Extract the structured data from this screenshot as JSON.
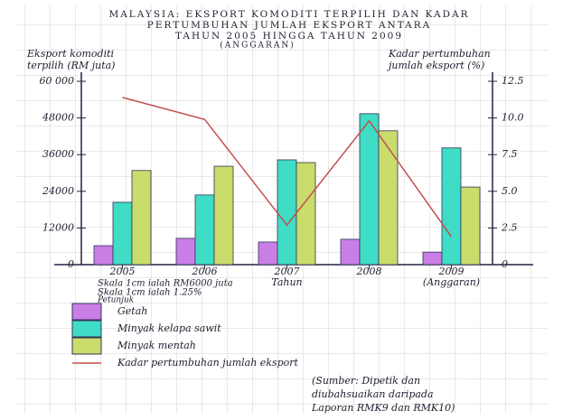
{
  "chart_data": {
    "type": "bar",
    "title": [
      "MALAYSIA: EKSPORT KOMODITI TERPILIH DAN KADAR",
      "PERTUMBUHAN JUMLAH EKSPORT ANTARA",
      "TAHUN 2005 HINGGA TAHUN 2009"
    ],
    "subtitle": "(ANGGARAN)",
    "y_label": [
      "Eksport komoditi",
      "terpilih (RM juta)"
    ],
    "y2_label": [
      "Kadar pertumbuhan",
      "jumlah eksport (%)"
    ],
    "x_label": "Tahun",
    "categories": [
      "2005",
      "2006",
      "2007",
      "2008",
      "2009"
    ],
    "annotation": "(Anggaran)",
    "series": [
      {
        "name": "Getah",
        "type": "bar",
        "color": "#c97ee6",
        "values": [
          6200,
          8600,
          7400,
          8300,
          4100
        ]
      },
      {
        "name": "Minyak kelapa sawit",
        "type": "bar",
        "color": "#3fdcc6",
        "values": [
          20400,
          22800,
          34300,
          49400,
          38200
        ]
      },
      {
        "name": "Minyak mentah",
        "type": "bar",
        "color": "#c9dc6c",
        "values": [
          30800,
          32200,
          33400,
          43800,
          25400
        ]
      },
      {
        "name": "Kadar pertumbuhan jumlah eksport",
        "type": "line",
        "axis": "y2",
        "color": "#c0504d",
        "values": [
          11.4,
          9.9,
          2.7,
          9.8,
          1.9
        ]
      }
    ],
    "ylim": [
      0,
      60000
    ],
    "yticks": [
      0,
      12000,
      24000,
      36000,
      48000,
      {
        "value": 60000,
        "label": "60 000"
      }
    ],
    "y2lim": [
      0,
      12.5
    ],
    "y2ticks": [
      0,
      2.5,
      {
        "value": 5,
        "label": "5.0"
      },
      7.5,
      {
        "value": 10,
        "label": "10.0"
      },
      12.5
    ],
    "scale_notes": [
      "Skala 1cm ialah RM6000 juta",
      "Skala 1cm ialah 1.25%"
    ],
    "legend_title": "Petunjuk",
    "source": [
      "(Sumber: Dipetik dan",
      "diubahsuaikan daripada",
      "Laporan RMK9 dan RMK10)"
    ]
  }
}
